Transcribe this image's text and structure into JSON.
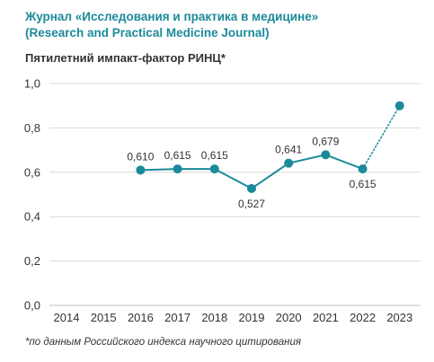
{
  "header": {
    "title_line1": "Журнал «Исследования и практика в медицине»",
    "title_line2": "(Research and Practical Medicine Journal)",
    "subtitle": "Пятилетний импакт-фактор РИНЦ*"
  },
  "footnote": "*по данным Российского индекса научного цитирования",
  "colors": {
    "accent": "#1b8a9a",
    "grid": "#d9d9d9",
    "text": "#333333"
  },
  "chart_data": {
    "type": "line",
    "title": "Пятилетний импакт-фактор РИНЦ*",
    "xlabel": "",
    "ylabel": "",
    "categories": [
      "2014",
      "2015",
      "2016",
      "2017",
      "2018",
      "2019",
      "2020",
      "2021",
      "2022",
      "2023"
    ],
    "y_tick_labels": [
      "0,0",
      "0,2",
      "0,4",
      "0,6",
      "0,8",
      "1,0"
    ],
    "ylim": [
      0,
      1.0
    ],
    "grid": true,
    "series": [
      {
        "values": [
          null,
          null,
          0.61,
          0.615,
          0.615,
          0.527,
          0.641,
          0.679,
          0.615,
          null
        ],
        "labels": [
          null,
          null,
          "0,610",
          "0,615",
          "0,615",
          "0,527",
          "0,641",
          "0,679",
          "0,615",
          null
        ]
      }
    ],
    "projection": {
      "from": "2022",
      "to": "2023",
      "from_value": 0.615,
      "to_value": 0.9,
      "style": "dotted"
    }
  }
}
